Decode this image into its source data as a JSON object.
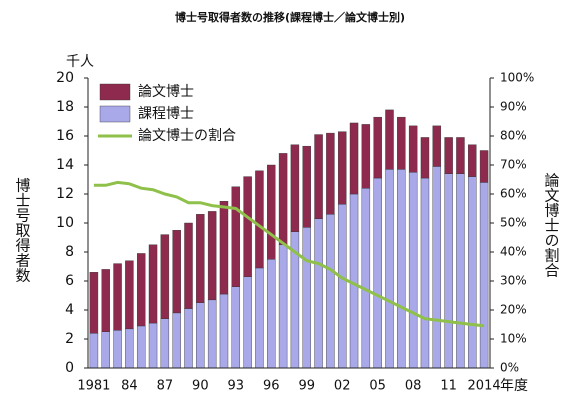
{
  "chart_data": {
    "type": "bar",
    "stacked": true,
    "title": "博士号取得者数の推移(課程博士／論文博士別)",
    "y_unit_label": "千人",
    "y_axis_label": "博士号取得者数",
    "y2_axis_label": "論文博士の割合",
    "x_axis_label": "年度",
    "categories": [
      "1981",
      null,
      null,
      "84",
      null,
      null,
      "87",
      null,
      null,
      "90",
      null,
      null,
      "93",
      null,
      null,
      "96",
      null,
      null,
      "99",
      null,
      null,
      "02",
      null,
      null,
      "05",
      null,
      null,
      "08",
      null,
      null,
      "11",
      null,
      null,
      "2014"
    ],
    "series": [
      {
        "name": "論文博士",
        "color": "#8e2a4e",
        "type": "bar",
        "values": [
          4.2,
          4.3,
          4.6,
          4.7,
          5.0,
          5.4,
          5.8,
          5.7,
          5.9,
          6.1,
          6.1,
          6.4,
          6.9,
          6.9,
          6.7,
          6.5,
          6.3,
          6.0,
          5.6,
          5.8,
          5.6,
          5.0,
          4.9,
          4.4,
          4.2,
          4.1,
          3.6,
          3.2,
          2.8,
          2.8,
          2.5,
          2.5,
          2.2,
          2.2
        ]
      },
      {
        "name": "課程博士",
        "color": "#a9a9ea",
        "type": "bar",
        "values": [
          2.4,
          2.5,
          2.6,
          2.7,
          2.9,
          3.1,
          3.4,
          3.8,
          4.1,
          4.5,
          4.7,
          5.1,
          5.6,
          6.3,
          6.9,
          7.5,
          8.5,
          9.4,
          9.7,
          10.3,
          10.6,
          11.3,
          12.0,
          12.4,
          13.1,
          13.7,
          13.7,
          13.5,
          13.1,
          13.9,
          13.4,
          13.4,
          13.2,
          12.8
        ]
      },
      {
        "name": "論文博士の割合",
        "color": "#8fc04a",
        "type": "line",
        "axis": "y2",
        "values": [
          63,
          63,
          64,
          63.5,
          62,
          61.5,
          60,
          59,
          57,
          57,
          56,
          55.5,
          55,
          52,
          49,
          46,
          43,
          40,
          37,
          36,
          34,
          31,
          29,
          27,
          25,
          23,
          21,
          19,
          17,
          16.5,
          16,
          15.5,
          15,
          14.5
        ]
      }
    ],
    "ylim": [
      0,
      20
    ],
    "yticks": [
      0,
      2,
      4,
      6,
      8,
      10,
      12,
      14,
      16,
      18,
      20
    ],
    "y2lim": [
      0,
      100
    ],
    "y2ticks": [
      {
        "value": 0,
        "label": "0%"
      },
      {
        "value": 10,
        "label": "10%"
      },
      {
        "value": 20,
        "label": "20%"
      },
      {
        "value": 30,
        "label": "30%"
      },
      {
        "value": 40,
        "label": "40%"
      },
      {
        "value": 50,
        "label": "50%"
      },
      {
        "value": 60,
        "label": "60%"
      },
      {
        "value": 70,
        "label": "70%"
      },
      {
        "value": 80,
        "label": "80%"
      },
      {
        "value": 90,
        "label": "90%"
      },
      {
        "value": 100,
        "label": "100%"
      }
    ],
    "legend": "upper left",
    "grid": false
  }
}
